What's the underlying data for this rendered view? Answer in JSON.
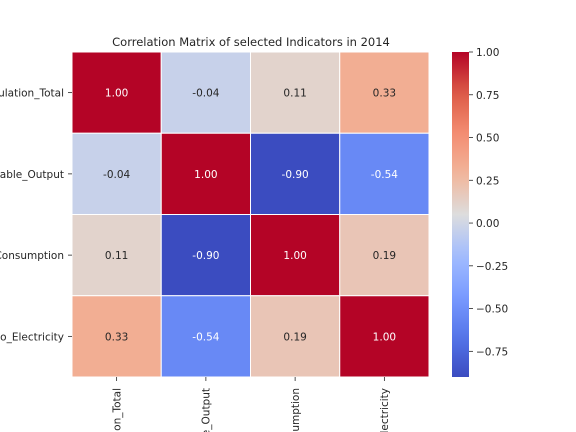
{
  "chart_data": {
    "type": "heatmap",
    "title": "Correlation Matrix of selected Indicators in 2014",
    "row_labels": [
      "ulation_Total",
      "wable_Output",
      "Consumption",
      "to_Electricity"
    ],
    "col_labels": [
      "on_Total",
      "e_Output",
      "sumption",
      "Electricity"
    ],
    "values": [
      [
        1.0,
        -0.04,
        0.11,
        0.33
      ],
      [
        -0.04,
        1.0,
        -0.9,
        -0.54
      ],
      [
        0.11,
        -0.9,
        1.0,
        0.19
      ],
      [
        0.33,
        -0.54,
        0.19,
        1.0
      ]
    ],
    "cell_text": [
      [
        "1.00",
        "-0.04",
        "0.11",
        "0.33"
      ],
      [
        "-0.04",
        "1.00",
        "-0.90",
        "-0.54"
      ],
      [
        "0.11",
        "-0.90",
        "1.00",
        "0.19"
      ],
      [
        "0.33",
        "-0.54",
        "0.19",
        "1.00"
      ]
    ],
    "colormap": "coolwarm",
    "vmin": -0.9,
    "vmax": 1.0,
    "colorbar": {
      "ticks": [
        1.0,
        0.75,
        0.5,
        0.25,
        0.0,
        -0.25,
        -0.5,
        -0.75
      ],
      "tick_labels": [
        "1.00",
        "0.75",
        "0.50",
        "0.25",
        "0.00",
        "−0.25",
        "−0.50",
        "−0.75"
      ]
    },
    "grid": true
  }
}
